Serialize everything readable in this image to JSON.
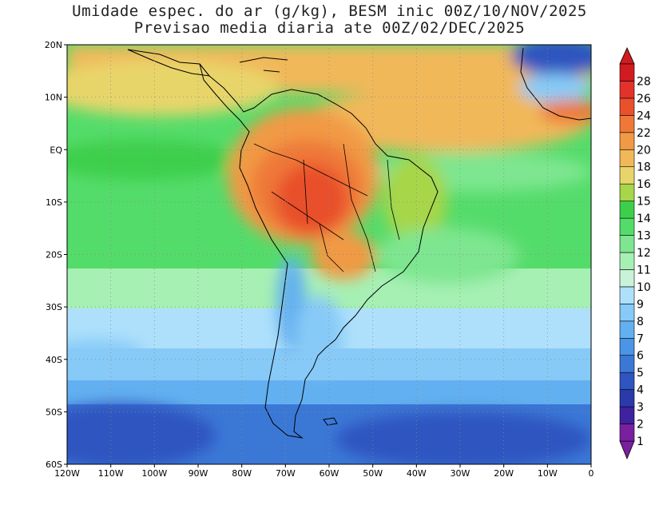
{
  "title": {
    "line1": "Umidade espec. do ar (g/kg), BESM inic 00Z/10/NOV/2025",
    "line2": "Previsao media diaria ate 00Z/02/DEC/2025"
  },
  "map": {
    "lon_range": [
      -120,
      0
    ],
    "lat_range": [
      -60,
      20
    ],
    "lon_ticks": [
      "120W",
      "110W",
      "100W",
      "90W",
      "80W",
      "70W",
      "60W",
      "50W",
      "40W",
      "30W",
      "20W",
      "10W",
      "0"
    ],
    "lat_ticks": [
      "20N",
      "10N",
      "EQ",
      "10S",
      "20S",
      "30S",
      "40S",
      "50S",
      "60S"
    ],
    "gridlines": true
  },
  "colorbar": {
    "levels": [
      "1",
      "2",
      "3",
      "4",
      "5",
      "6",
      "7",
      "8",
      "9",
      "10",
      "11",
      "12",
      "13",
      "14",
      "15",
      "16",
      "18",
      "20",
      "22",
      "24",
      "26",
      "28"
    ],
    "colors": [
      "#7a1fa0",
      "#3e22a0",
      "#2a3aa8",
      "#2e55c0",
      "#3b78d6",
      "#4a95e6",
      "#63b0f0",
      "#87caf7",
      "#aee0fb",
      "#c9f3d9",
      "#a6f0b4",
      "#7ee690",
      "#54dc6a",
      "#3dcf4b",
      "#a7d64a",
      "#e8d56a",
      "#f1b85a",
      "#f19a45",
      "#ef7838",
      "#e9502c",
      "#e3322a",
      "#d01b20"
    ]
  },
  "icons": {
    "colorbar_top": "triangle-up-icon",
    "colorbar_bottom": "triangle-down-icon"
  }
}
